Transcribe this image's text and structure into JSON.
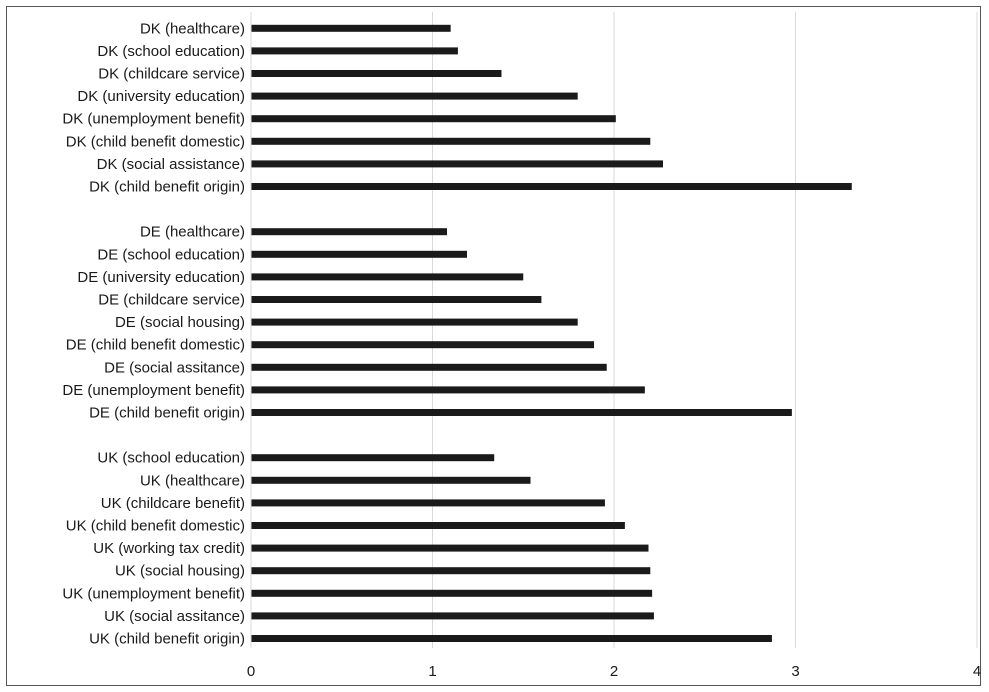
{
  "chart_data": {
    "type": "bar",
    "orientation": "horizontal",
    "title": "",
    "xlabel": "",
    "ylabel": "",
    "xlim": [
      0,
      4
    ],
    "xticks": [
      "0",
      "1",
      "2",
      "3",
      "4"
    ],
    "grid": "vertical",
    "legend": "none",
    "bar_color": "#1a1a1a",
    "grid_color": "#d9d9d9",
    "groups": [
      {
        "categories": [
          "DK (healthcare)",
          "DK (school education)",
          "DK (childcare service)",
          "DK (university education)",
          "DK (unemployment benefit)",
          "DK (child benefit domestic)",
          "DK (social assistance)",
          "DK (child benefit origin)"
        ],
        "values": [
          1.1,
          1.14,
          1.38,
          1.8,
          2.01,
          2.2,
          2.27,
          3.31
        ]
      },
      {
        "categories": [
          "DE (healthcare)",
          "DE (school education)",
          "DE (university education)",
          "DE (childcare service)",
          "DE (social housing)",
          "DE (child benefit domestic)",
          "DE (social assitance)",
          "DE (unemployment benefit)",
          "DE (child benefit origin)"
        ],
        "values": [
          1.08,
          1.19,
          1.5,
          1.6,
          1.8,
          1.89,
          1.96,
          2.17,
          2.98
        ]
      },
      {
        "categories": [
          "UK (school education)",
          "UK (healthcare)",
          "UK (childcare benefit)",
          "UK (child benefit domestic)",
          "UK (working tax credit)",
          "UK (social housing)",
          "UK (unemployment benefit)",
          "UK (social assitance)",
          "UK (child benefit origin)"
        ],
        "values": [
          1.34,
          1.54,
          1.95,
          2.06,
          2.19,
          2.2,
          2.21,
          2.22,
          2.87
        ]
      }
    ]
  }
}
